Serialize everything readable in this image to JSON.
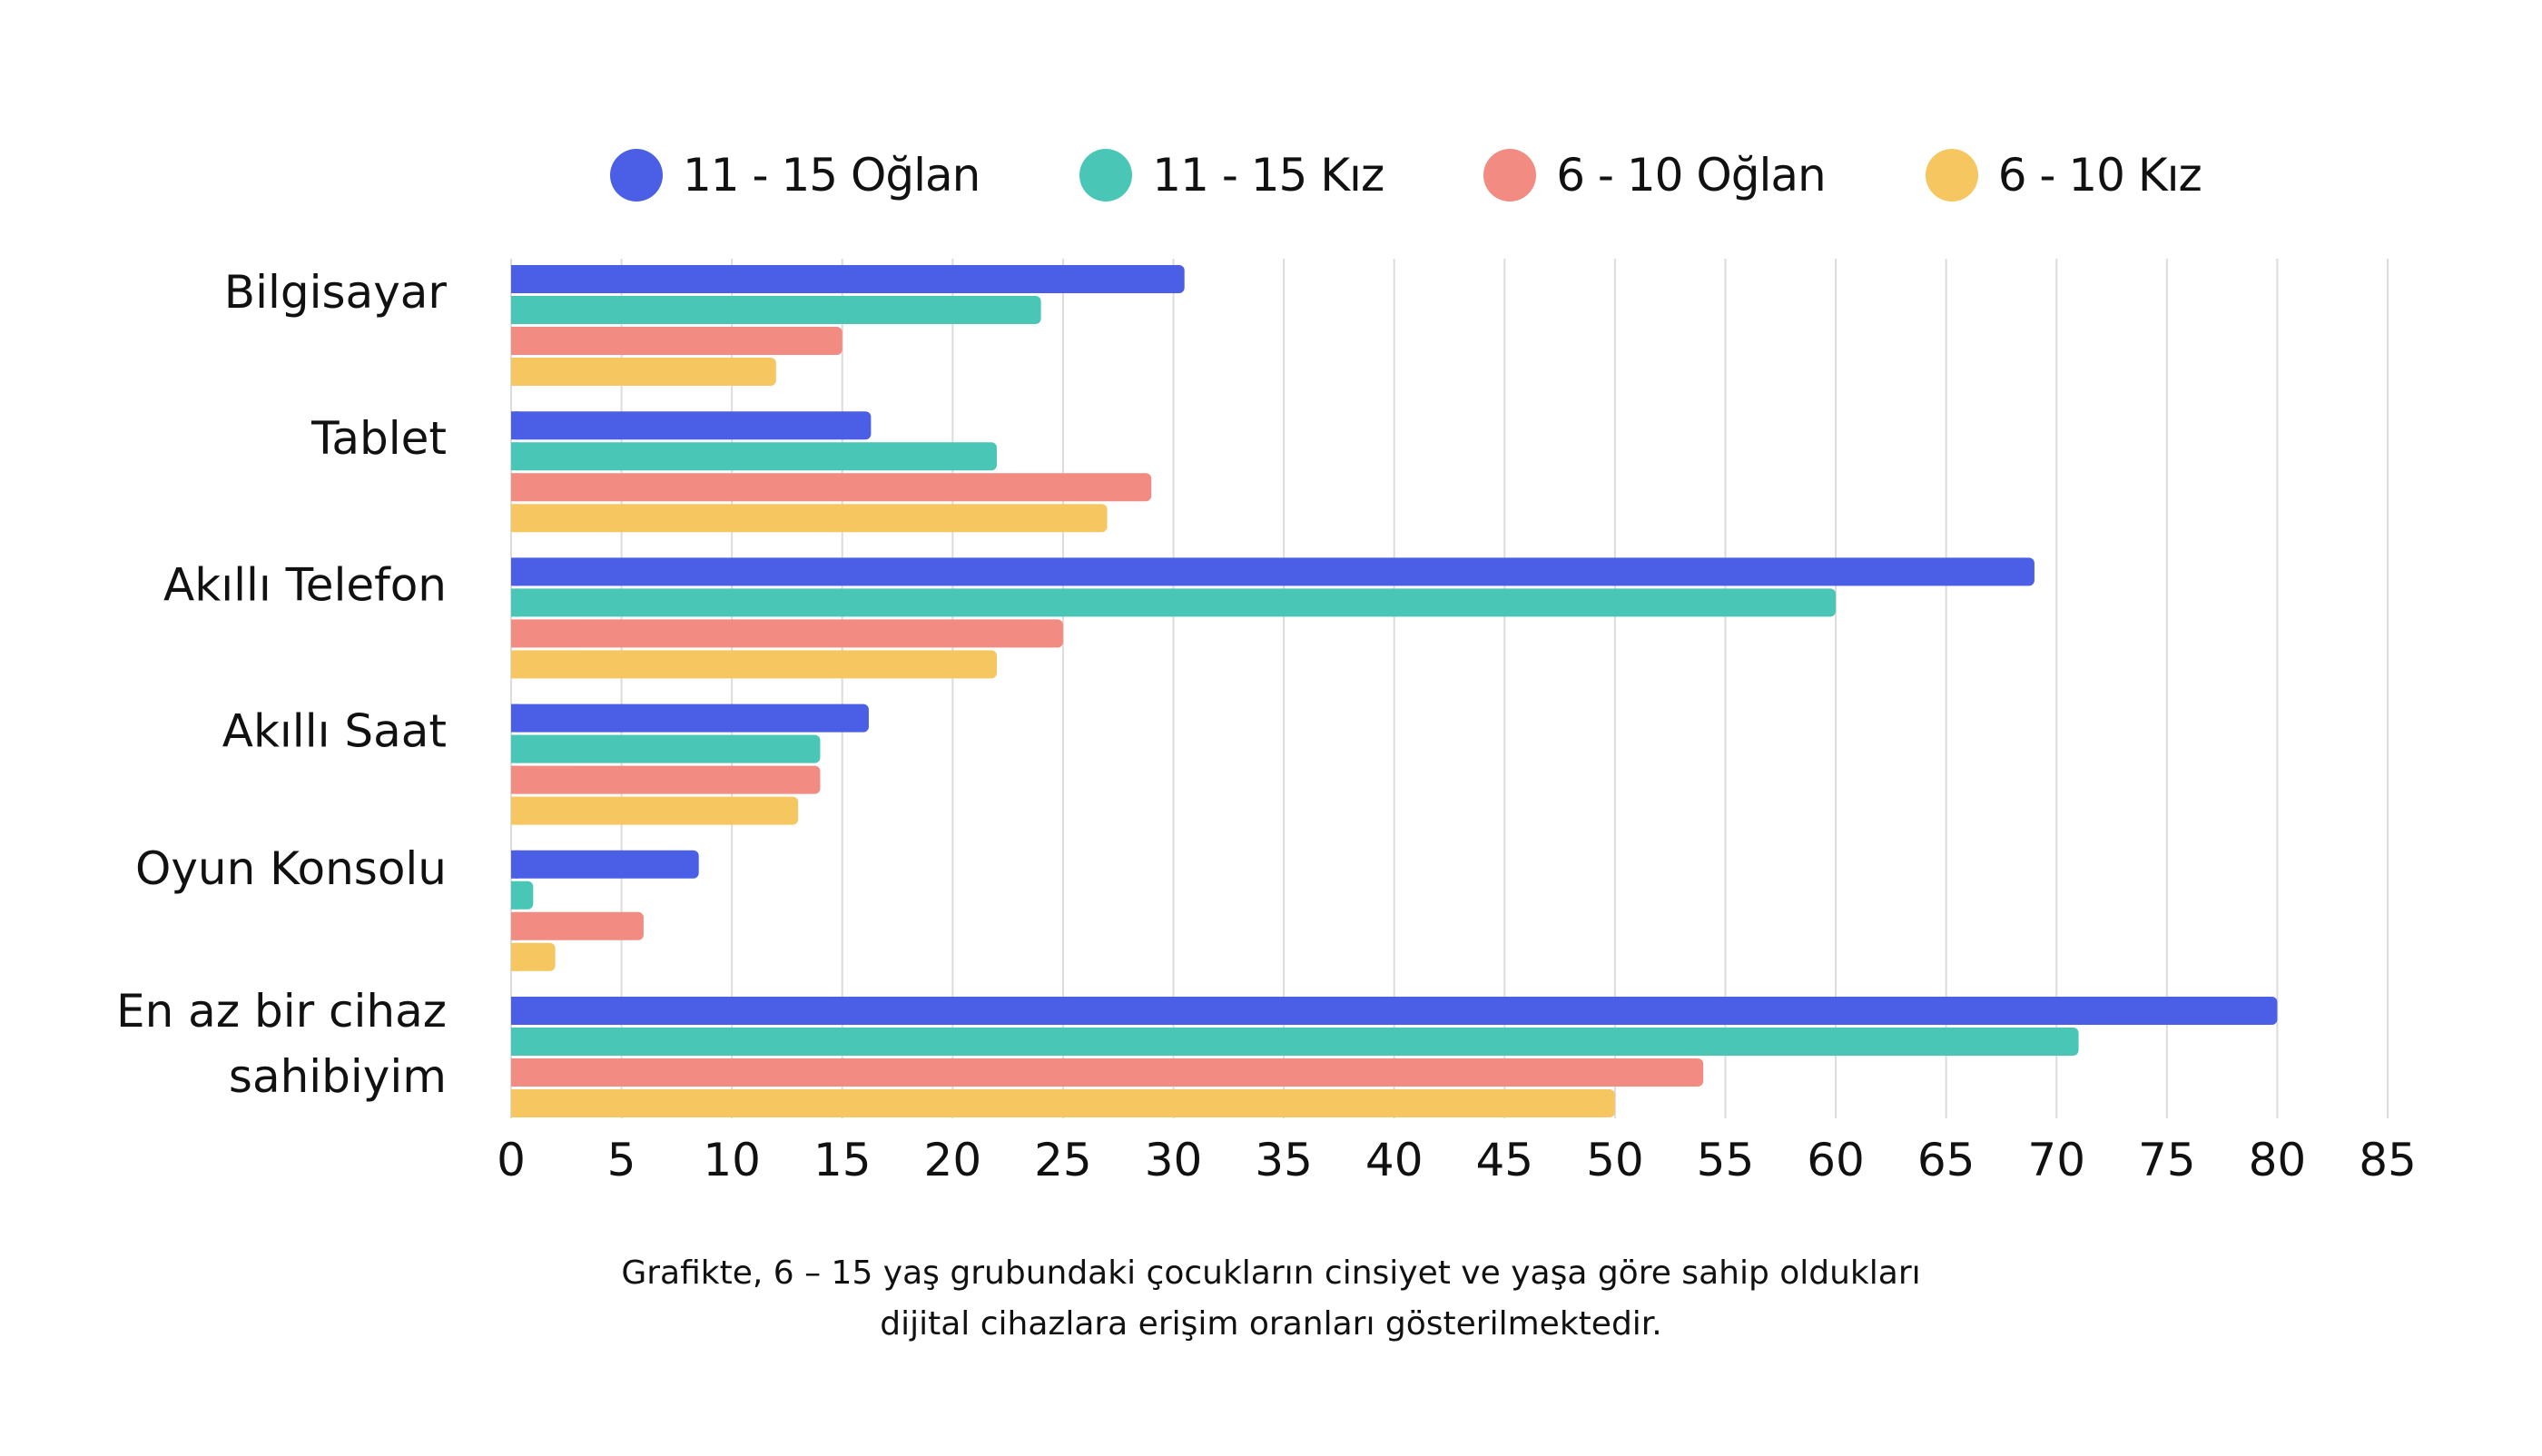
{
  "chart_data": {
    "type": "bar",
    "orientation": "horizontal",
    "title": "",
    "xlabel": "",
    "ylabel": "",
    "categories": [
      "Bilgisayar",
      "Tablet",
      "Akıllı Telefon",
      "Akıllı Saat",
      "Oyun Konsolu",
      "En az bir cihaz sahibiyim"
    ],
    "category_lines": [
      [
        "Bilgisayar"
      ],
      [
        "Tablet"
      ],
      [
        "Akıllı Telefon"
      ],
      [
        "Akıllı Saat"
      ],
      [
        "Oyun Konsolu"
      ],
      [
        "En az bir cihaz",
        "sahibiyim"
      ]
    ],
    "series": [
      {
        "name": "11 - 15 Oğlan",
        "color": "#4a5ee6",
        "values": [
          30.5,
          16.3,
          69,
          16.2,
          8.5,
          80
        ]
      },
      {
        "name": "11 - 15 Kız",
        "color": "#4ac6b7",
        "values": [
          24,
          22,
          60,
          14,
          1,
          71
        ]
      },
      {
        "name": "6 - 10 Oğlan",
        "color": "#f28b82",
        "values": [
          15,
          29,
          25,
          14,
          6,
          54
        ]
      },
      {
        "name": "6 - 10 Kız",
        "color": "#f6c760",
        "values": [
          12,
          27,
          22,
          13,
          2,
          50
        ]
      }
    ],
    "xlim": [
      0,
      85
    ],
    "xticks": [
      0,
      5,
      10,
      15,
      20,
      25,
      30,
      35,
      40,
      45,
      50,
      55,
      60,
      65,
      70,
      75,
      80,
      85
    ],
    "grid": true,
    "legend_position": "top"
  },
  "caption": {
    "line1": "Grafikte, 6 – 15 yaş grubundaki çocukların cinsiyet ve yaşa göre sahip oldukları",
    "line2": "dijital cihazlara erişim oranları gösterilmektedir."
  }
}
